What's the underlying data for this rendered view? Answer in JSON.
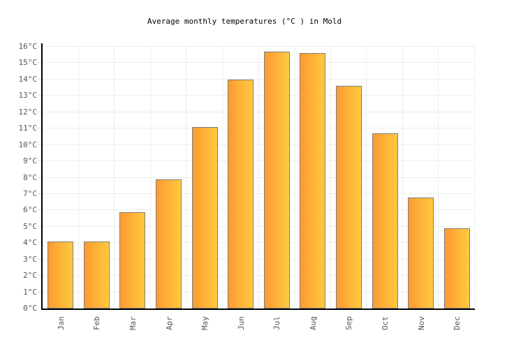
{
  "title": "Average monthly temperatures (°C ) in Mold",
  "chart_data": {
    "type": "bar",
    "title": "Average monthly temperatures (°C ) in Mold",
    "categories": [
      "Jan",
      "Feb",
      "Mar",
      "Apr",
      "May",
      "Jun",
      "Jul",
      "Aug",
      "Sep",
      "Oct",
      "Nov",
      "Dec"
    ],
    "values": [
      4.1,
      4.1,
      5.9,
      7.9,
      11.1,
      14.0,
      15.7,
      15.6,
      13.6,
      10.7,
      6.8,
      4.9
    ],
    "xlabel": "",
    "ylabel": "",
    "ylim": [
      0,
      16
    ],
    "ytick_step": 1,
    "ytick_suffix": "°C",
    "grid": true,
    "legend_position": "none"
  },
  "colors": {
    "background": "#ffffff",
    "bar_gradient_left": "#fd9a31",
    "bar_gradient_right": "#ffc93f",
    "bar_border": "#7d7d7d",
    "axis": "#000000",
    "gridline": "#ededed",
    "tick": "#dddddd",
    "label_text": "#555555",
    "title_text": "#000000"
  }
}
